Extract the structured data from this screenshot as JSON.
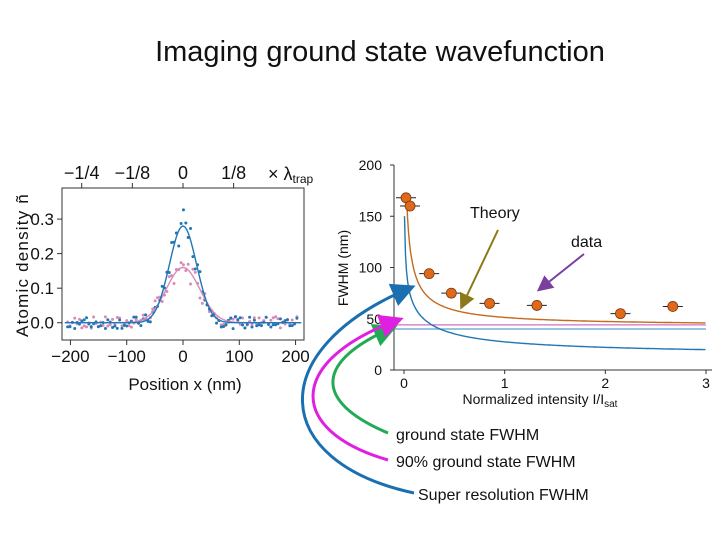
{
  "slide": {
    "title": "Imaging ground state wavefunction",
    "annotations": {
      "theory": "Theory",
      "data": "data",
      "ground_state": "ground state FWHM",
      "ninety_pct": "90% ground state FWHM",
      "super_res": "Super resolution  FWHM"
    },
    "colors": {
      "theory": "#8b7a1a",
      "data": "#7b3fa0",
      "ground_arrow": "#22aa55",
      "ninety_arrow": "#e020e0",
      "super_arrow": "#1a6fb0"
    }
  },
  "chart_data": [
    {
      "type": "scatter",
      "title": "",
      "xlabel": "Position x (nm)",
      "ylabel": "Atomic density ñ",
      "xlim": [
        -215,
        215
      ],
      "ylim": [
        -0.05,
        0.39
      ],
      "xticks": [
        "−200",
        "−100",
        "0",
        "100",
        "200"
      ],
      "yticks": [
        "0.0",
        "0.1",
        "0.2",
        "0.3"
      ],
      "top_axis_label": "× λ",
      "top_axis_subscript": "trap",
      "top_ticks": [
        "−1/4",
        "−1/8",
        "0",
        "1/8"
      ],
      "series": [
        {
          "name": "blue data",
          "color": "#1f77b4",
          "fit_peak": 0.28,
          "fit_sigma": 24
        },
        {
          "name": "pink data",
          "color": "#d88ab8",
          "fit_peak": 0.16,
          "fit_sigma": 30
        }
      ]
    },
    {
      "type": "line",
      "title": "",
      "xlabel": "Normalized intensity I/I",
      "xlabel_subscript": "sat",
      "ylabel": "FWHM (nm)",
      "xlim": [
        -0.1,
        3
      ],
      "ylim": [
        0,
        200
      ],
      "xticks": [
        "0",
        "1",
        "2",
        "3"
      ],
      "yticks": [
        "0",
        "50",
        "100",
        "150",
        "200"
      ],
      "series": [
        {
          "name": "data",
          "color": "#e06a1a",
          "x": [
            0.02,
            0.06,
            0.25,
            0.47,
            0.85,
            1.32,
            2.15,
            2.67
          ],
          "y": [
            168,
            160,
            94,
            75,
            65,
            63,
            55,
            62
          ]
        },
        {
          "name": "theory",
          "color": "#c46a20"
        },
        {
          "name": "super resolution",
          "color": "#1f77b4"
        },
        {
          "name": "ground state FWHM",
          "color": "#5aa0d0",
          "y": 40
        },
        {
          "name": "90% ground state FWHM",
          "color": "#d070c0",
          "y": 44
        }
      ]
    }
  ]
}
